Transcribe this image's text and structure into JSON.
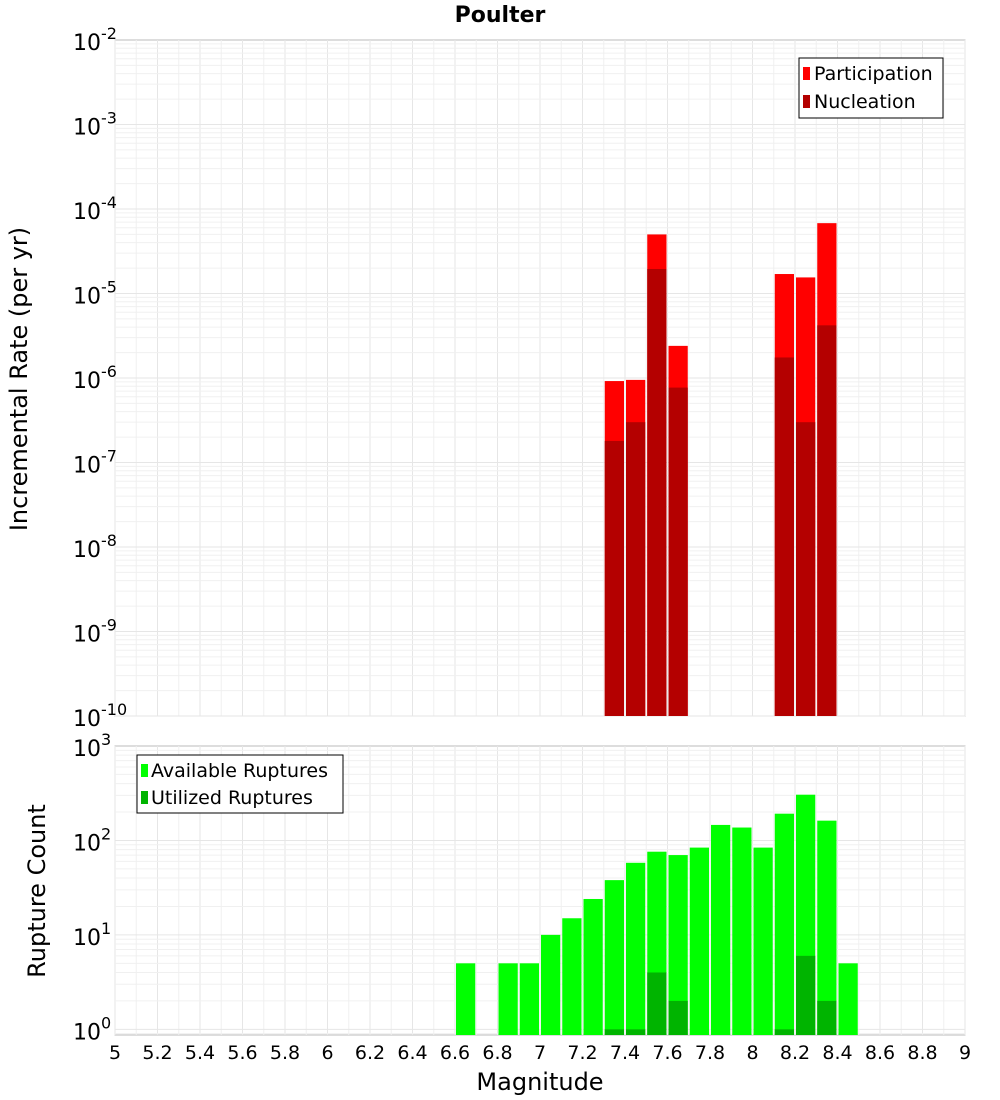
{
  "colors": {
    "participation": "#ff0000",
    "nucleation": "#b40000",
    "available": "#00ff00",
    "utilized": "#00b400"
  },
  "chart_data": [
    {
      "type": "bar",
      "title": "Poulter",
      "ylabel": "Incremental Rate (per yr)",
      "xlabel": "",
      "xlim": [
        5,
        9
      ],
      "ylog": true,
      "ylim_exponents": [
        -10,
        -2
      ],
      "ytick_exponents": [
        "-10",
        "-9",
        "-8",
        "-7",
        "-6",
        "-5",
        "-4",
        "-3",
        "-2"
      ],
      "bar_width": 0.1,
      "legend_position": "top-right",
      "legend": [
        "Participation",
        "Nucleation"
      ],
      "series": [
        {
          "name": "Participation",
          "color": "participation",
          "x": [
            7.35,
            7.45,
            7.55,
            7.65,
            8.15,
            8.25,
            8.35
          ],
          "values": [
            9.2e-07,
            9.5e-07,
            5e-05,
            2.4e-06,
            1.7e-05,
            1.55e-05,
            6.8e-05
          ]
        },
        {
          "name": "Nucleation",
          "color": "nucleation",
          "x": [
            7.35,
            7.45,
            7.55,
            7.65,
            8.15,
            8.25,
            8.35
          ],
          "values": [
            1.8e-07,
            3e-07,
            1.95e-05,
            7.7e-07,
            1.75e-06,
            3e-07,
            4.2e-06
          ]
        }
      ]
    },
    {
      "type": "bar",
      "ylabel": "Rupture Count",
      "xlabel": "Magnitude",
      "xlim": [
        5,
        9
      ],
      "xticks": [
        "5",
        "5.2",
        "5.4",
        "5.6",
        "5.8",
        "6",
        "6.2",
        "6.4",
        "6.6",
        "6.8",
        "7",
        "7.2",
        "7.4",
        "7.6",
        "7.8",
        "8",
        "8.2",
        "8.4",
        "8.6",
        "8.8",
        "9"
      ],
      "ylog": true,
      "ylim_exponents": [
        -0.06,
        3
      ],
      "ytick_exponents": [
        "0",
        "1",
        "2",
        "3"
      ],
      "bar_width": 0.1,
      "legend_position": "top-left",
      "legend": [
        "Available Ruptures",
        "Utilized Ruptures"
      ],
      "series": [
        {
          "name": "Available Ruptures",
          "color": "available",
          "x": [
            6.65,
            6.85,
            6.95,
            7.05,
            7.15,
            7.25,
            7.35,
            7.45,
            7.55,
            7.65,
            7.75,
            7.85,
            7.95,
            8.05,
            8.15,
            8.25,
            8.35,
            8.45
          ],
          "values": [
            5,
            5,
            5,
            10,
            15,
            24,
            38,
            58,
            76,
            70,
            84,
            146,
            137,
            84,
            192,
            305,
            162,
            5
          ]
        },
        {
          "name": "Utilized Ruptures",
          "color": "utilized",
          "x": [
            7.35,
            7.45,
            7.55,
            7.65,
            8.15,
            8.25,
            8.35
          ],
          "values": [
            1,
            1,
            4,
            2,
            1,
            6,
            2
          ]
        }
      ]
    }
  ]
}
